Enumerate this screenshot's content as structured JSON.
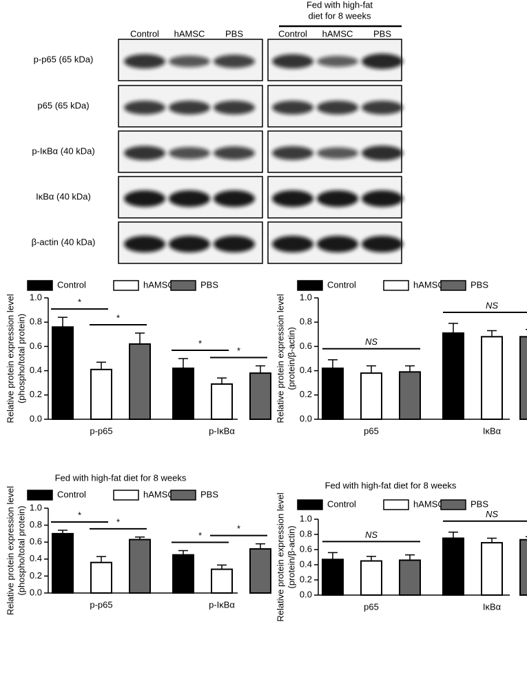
{
  "blots": {
    "header": [
      "Fed with high-fat",
      "diet for 8 weeks"
    ],
    "columns": [
      "Control",
      "hAMSC",
      "PBS"
    ],
    "rows": [
      "p-p65 (65 kDa)",
      "p65 (65 kDa)",
      "p-IκBα (40 kDa)",
      "IκBα (40 kDa)",
      "β-actin (40 kDa)"
    ]
  },
  "chart_data": [
    {
      "type": "bar",
      "ylabel": [
        "Relative protein expression level",
        "(phospho/total protein)"
      ],
      "categories": [
        "p-p65",
        "p-IκBα"
      ],
      "series": [
        {
          "name": "Control",
          "color": "#000000",
          "values": [
            0.76,
            0.42
          ],
          "errors": [
            0.08,
            0.08
          ]
        },
        {
          "name": "hAMSC",
          "color": "#ffffff",
          "values": [
            0.41,
            0.29
          ],
          "errors": [
            0.06,
            0.05
          ]
        },
        {
          "name": "PBS",
          "color": "#666666",
          "values": [
            0.62,
            0.38
          ],
          "errors": [
            0.09,
            0.06
          ]
        }
      ],
      "ylim": [
        0,
        1
      ],
      "yticks": [
        {
          "value": 0,
          "label": "0.0"
        },
        0.2,
        0.4,
        0.6,
        0.8,
        {
          "value": 1,
          "label": "1.0"
        }
      ],
      "annotations": [
        "*",
        "*",
        "*",
        "*"
      ]
    },
    {
      "type": "bar",
      "ylabel": [
        "Relative protein expression level",
        "(protein/β-actin)"
      ],
      "categories": [
        "p65",
        "IκBα"
      ],
      "series": [
        {
          "name": "Control",
          "color": "#000000",
          "values": [
            0.42,
            0.71
          ],
          "errors": [
            0.07,
            0.08
          ]
        },
        {
          "name": "hAMSC",
          "color": "#ffffff",
          "values": [
            0.38,
            0.68
          ],
          "errors": [
            0.06,
            0.05
          ]
        },
        {
          "name": "PBS",
          "color": "#666666",
          "values": [
            0.39,
            0.68
          ],
          "errors": [
            0.05,
            0.06
          ]
        }
      ],
      "ylim": [
        0,
        1
      ],
      "yticks": [
        {
          "value": 0,
          "label": "0.0"
        },
        0.2,
        0.4,
        0.6,
        0.8,
        {
          "value": 1,
          "label": "1.0"
        }
      ],
      "annotations": [
        "NS",
        "NS"
      ]
    },
    {
      "type": "bar",
      "title": "Fed with high-fat diet for 8 weeks",
      "ylabel": [
        "Relative protein expression level",
        "(phospho/total protein)"
      ],
      "categories": [
        "p-p65",
        "p-IκBα"
      ],
      "series": [
        {
          "name": "Control",
          "color": "#000000",
          "values": [
            0.7,
            0.45
          ],
          "errors": [
            0.04,
            0.05
          ]
        },
        {
          "name": "hAMSC",
          "color": "#ffffff",
          "values": [
            0.36,
            0.28
          ],
          "errors": [
            0.07,
            0.05
          ]
        },
        {
          "name": "PBS",
          "color": "#666666",
          "values": [
            0.63,
            0.52
          ],
          "errors": [
            0.03,
            0.06
          ]
        }
      ],
      "ylim": [
        0,
        1
      ],
      "yticks": [
        {
          "value": 0,
          "label": "0.0"
        },
        0.2,
        0.4,
        0.6,
        0.8,
        {
          "value": 1,
          "label": "1.0"
        }
      ],
      "annotations": [
        "*",
        "*",
        "*",
        "*"
      ]
    },
    {
      "type": "bar",
      "title": "Fed with high-fat diet for 8 weeks",
      "ylabel": [
        "Relative protein expression level",
        "(protein/β-actin)"
      ],
      "categories": [
        "p65",
        "IκBα"
      ],
      "series": [
        {
          "name": "Control",
          "color": "#000000",
          "values": [
            0.47,
            0.75
          ],
          "errors": [
            0.09,
            0.08
          ]
        },
        {
          "name": "hAMSC",
          "color": "#ffffff",
          "values": [
            0.45,
            0.69
          ],
          "errors": [
            0.06,
            0.06
          ]
        },
        {
          "name": "PBS",
          "color": "#666666",
          "values": [
            0.46,
            0.73
          ],
          "errors": [
            0.07,
            0.04
          ]
        }
      ],
      "ylim": [
        0,
        1
      ],
      "yticks": [
        {
          "value": 0,
          "label": "0.0"
        },
        0.2,
        0.4,
        0.6,
        0.8,
        {
          "value": 1,
          "label": "1.0"
        }
      ],
      "annotations": [
        "NS",
        "NS"
      ]
    }
  ]
}
